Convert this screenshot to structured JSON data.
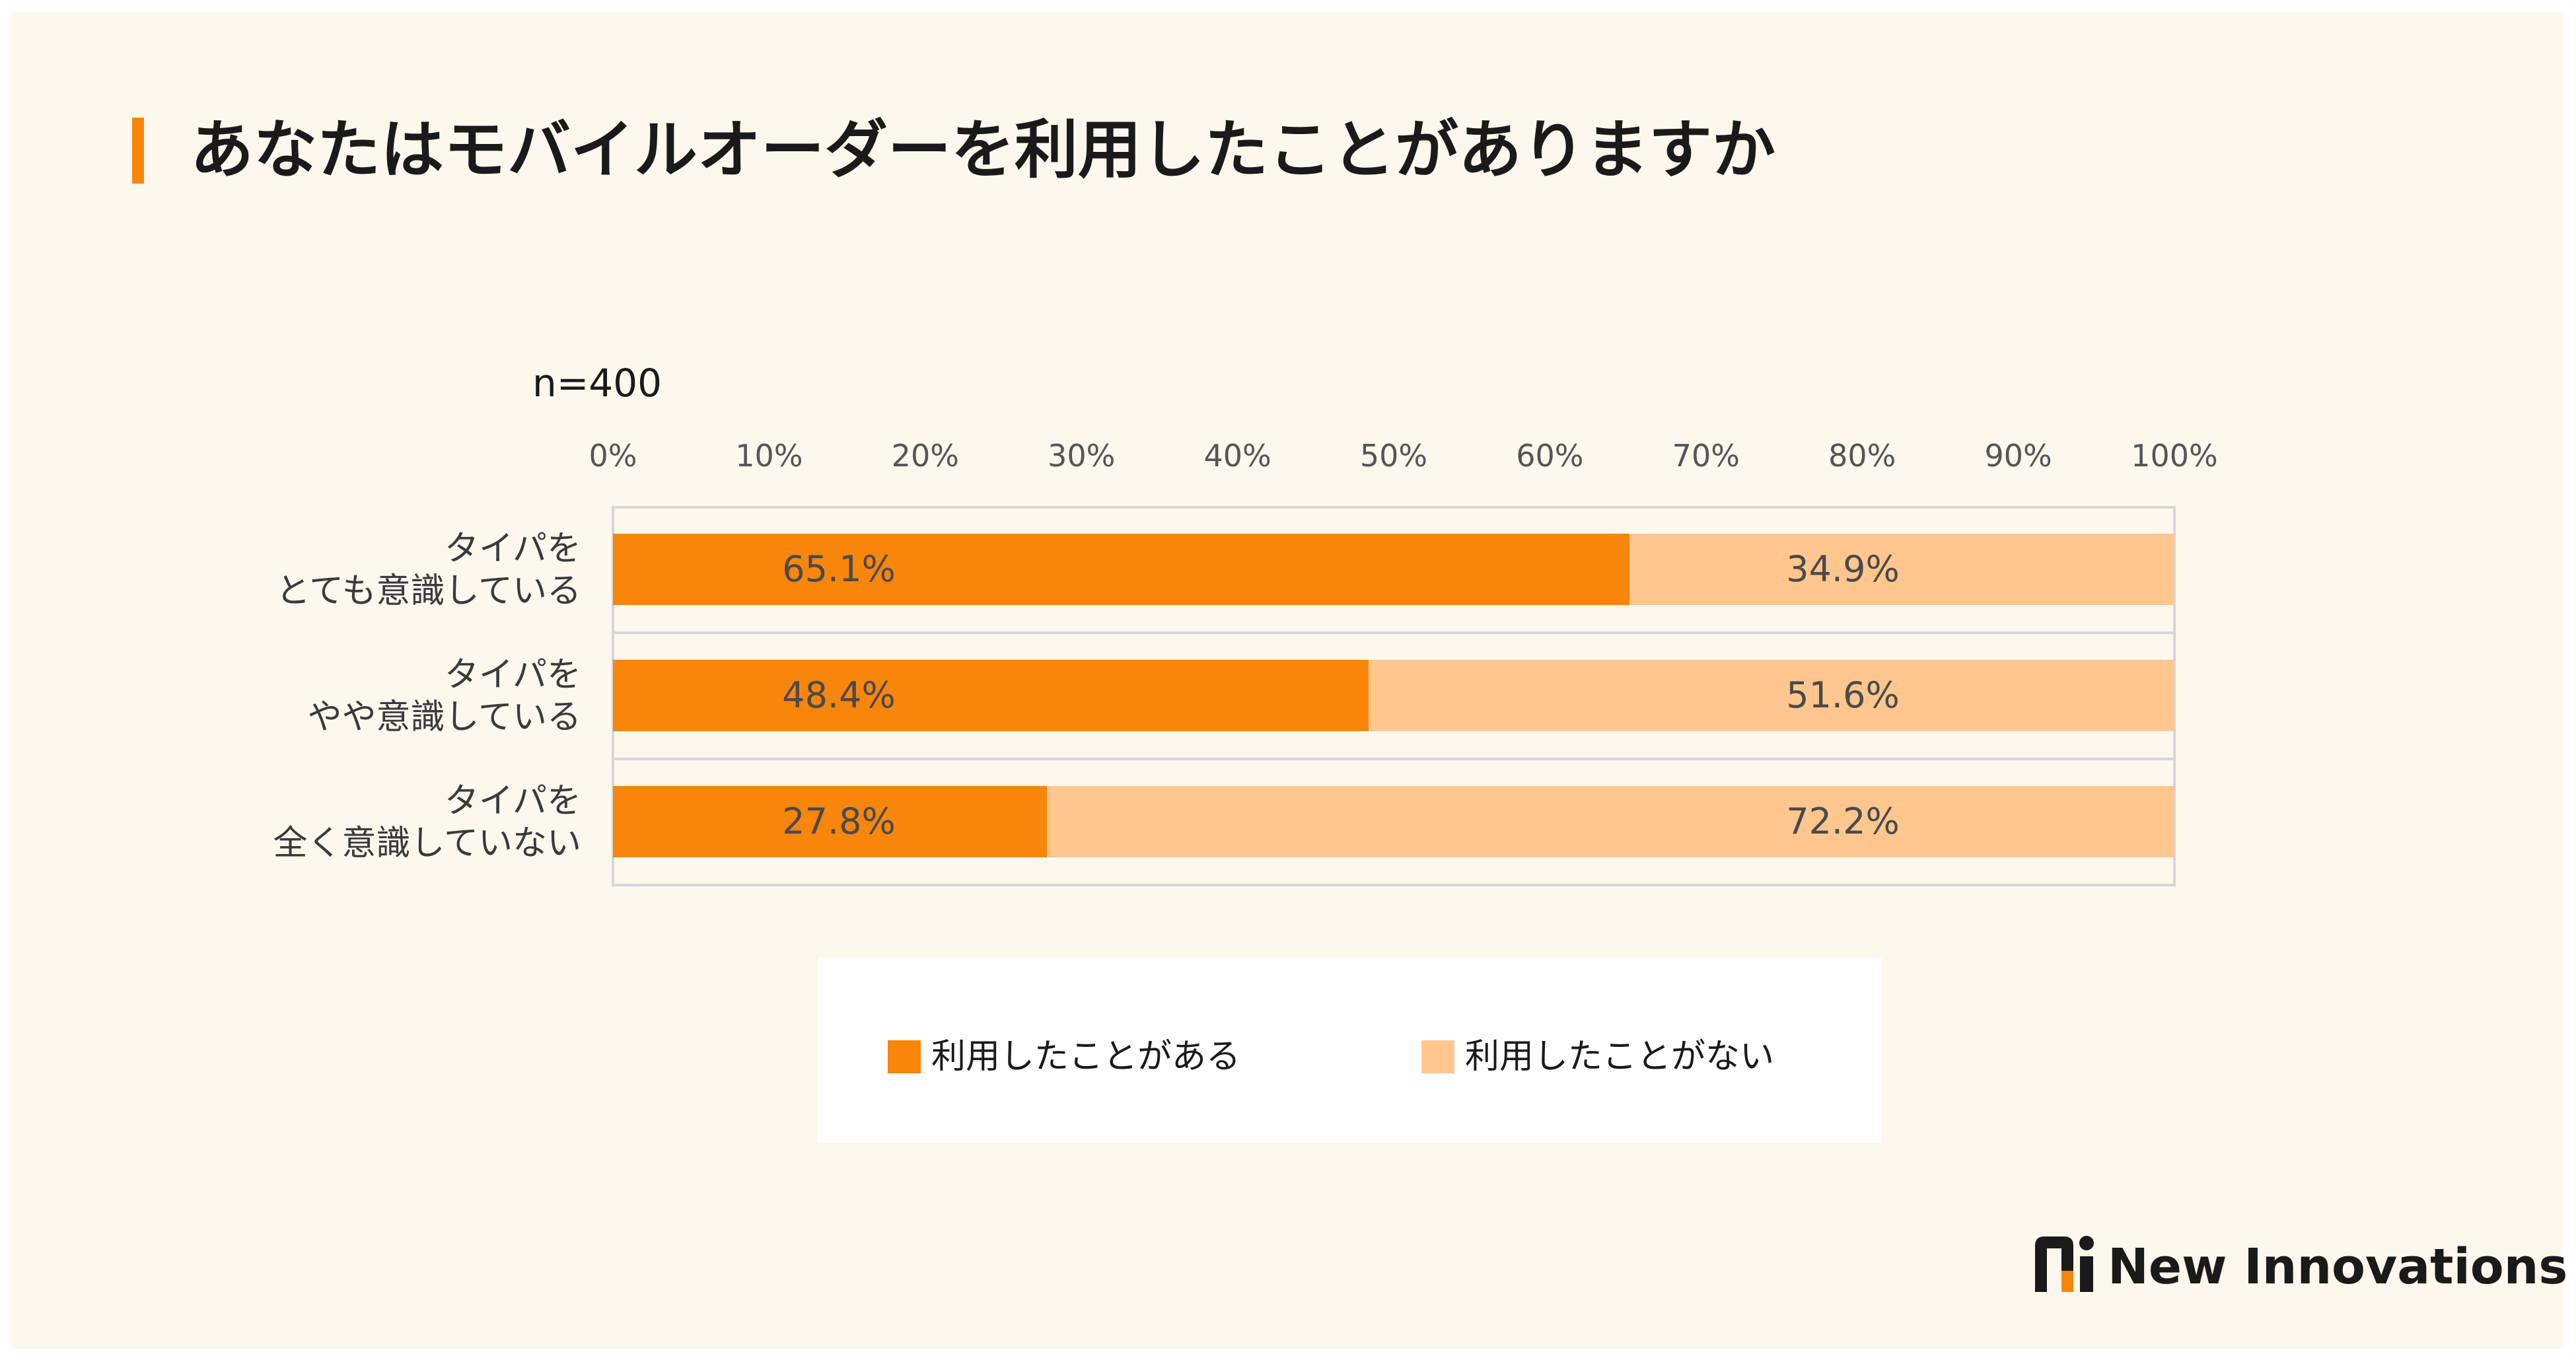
{
  "title": "あなたはモバイルオーダーを利用したことがありますか",
  "sample_size": "n=400",
  "colors": {
    "accent": "#f8860b",
    "used": "#f8860b",
    "not_used": "#ffc78e",
    "background": "#fcf8ee"
  },
  "chart_data": {
    "type": "bar",
    "orientation": "horizontal-stacked-100",
    "title": "あなたはモバイルオーダーを利用したことがありますか",
    "subtitle": "n=400",
    "x_ticks": [
      "0%",
      "10%",
      "20%",
      "30%",
      "40%",
      "50%",
      "60%",
      "70%",
      "80%",
      "90%",
      "100%"
    ],
    "xlim": [
      0,
      100
    ],
    "categories": [
      [
        "タイパを",
        "とても意識している"
      ],
      [
        "タイパを",
        "やや意識している"
      ],
      [
        "タイパを",
        "全く意識していない"
      ]
    ],
    "series": [
      {
        "name": "利用したことがある",
        "color": "#f8860b",
        "values": [
          65.1,
          48.4,
          27.8
        ],
        "labels": [
          "65.1%",
          "48.4%",
          "27.8%"
        ]
      },
      {
        "name": "利用したことがない",
        "color": "#ffc78e",
        "values": [
          34.9,
          51.6,
          72.2
        ],
        "labels": [
          "34.9%",
          "51.6%",
          "72.2%"
        ]
      }
    ],
    "legend_position": "bottom"
  },
  "legend": [
    {
      "label": "利用したことがある",
      "color": "#f8860b"
    },
    {
      "label": "利用したことがない",
      "color": "#ffc78e"
    }
  ],
  "brand": {
    "name": "New Innovations",
    "logo_icon": "new-innovations-logo-icon"
  }
}
